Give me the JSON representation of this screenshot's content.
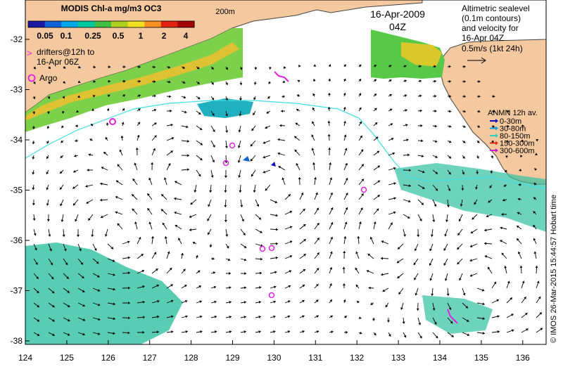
{
  "map": {
    "colorbar_title": "MODIS Chl-a mg/m3 OC3",
    "colorbar_ticks": [
      "0.05",
      "0.1",
      "0.25",
      "0.5",
      "1",
      "2",
      "4"
    ],
    "colorbar_colors": [
      "#1a1aa0",
      "#1060d8",
      "#00a8e8",
      "#00c8a0",
      "#40c040",
      "#b0d020",
      "#f0e020",
      "#f89020",
      "#e02010",
      "#a00000"
    ],
    "isobath_label": "200m",
    "date": "16-Apr-2009",
    "time": "04Z",
    "altimetry_note": [
      "Altimetric sealevel",
      "(0.1m contours)",
      "and velocity for",
      "16-Apr 04Z",
      "0.5m/s (1kt 24h)"
    ],
    "drifter_legend": [
      "drifters@12h to",
      "16-Apr 06Z"
    ],
    "argo_label": "Argo",
    "anmn": {
      "title": "ANMN 12h av.",
      "items": [
        {
          "label": "0-30m",
          "color": "#1010c0"
        },
        {
          "label": "30-80m",
          "color": "#10a0e0"
        },
        {
          "label": "80-150m",
          "color": "#30d0c0"
        },
        {
          "label": "150-300m",
          "color": "#e03020"
        },
        {
          "label": "300-600m",
          "color": "#c020c0"
        }
      ]
    },
    "credit": "© IMOS 26-Mar-2015 15:44:57 Hobart time",
    "lon_labels": [
      "124",
      "125",
      "126",
      "127",
      "128",
      "129",
      "130",
      "131",
      "132",
      "133",
      "134",
      "135",
      "136"
    ],
    "lat_labels": [
      "-32",
      "-33",
      "-34",
      "-35",
      "-36",
      "-37",
      "-38"
    ],
    "colors": {
      "land": "#f5c9a0",
      "ocean": "#ffffff",
      "isobath": "#40e0e0",
      "argo": "#e020e0",
      "arrow": "#000000",
      "coast": "#444444"
    }
  }
}
